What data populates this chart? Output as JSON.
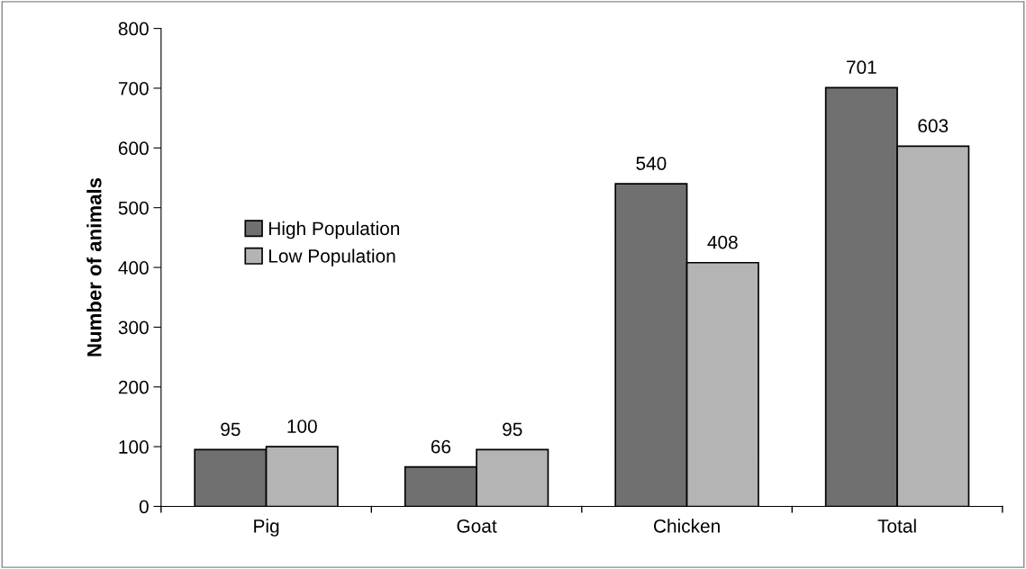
{
  "chart_data": {
    "type": "bar",
    "ylabel": "Number of animals",
    "categories": [
      "Pig",
      "Goat",
      "Chicken",
      "Total"
    ],
    "series": [
      {
        "name": "High Population",
        "color": "#707070",
        "values": [
          95,
          66,
          540,
          701
        ]
      },
      {
        "name": "Low Population",
        "color": "#b4b4b4",
        "values": [
          100,
          95,
          408,
          603
        ]
      }
    ],
    "ylim": [
      0,
      800
    ],
    "yticks": [
      0,
      100,
      200,
      300,
      400,
      500,
      600,
      700,
      800
    ],
    "grid": false,
    "legend": "left",
    "data_labels": true
  }
}
